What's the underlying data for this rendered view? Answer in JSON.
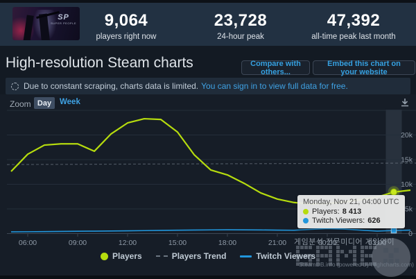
{
  "header": {
    "game_title": "SUPER PEOPLE",
    "game_logo_abbr": "SP",
    "stats": [
      {
        "value": "9,064",
        "label": "players right now"
      },
      {
        "value": "23,728",
        "label": "24-hour peak"
      },
      {
        "value": "47,392",
        "label": "all-time peak last month"
      }
    ]
  },
  "page": {
    "title": "High-resolution Steam charts",
    "compare_button": "Compare with others...",
    "embed_button": "Embed this chart on your website",
    "notice_text": "Due to constant scraping, charts data is limited.",
    "notice_link": "You can sign in to view full data for free."
  },
  "toolbar": {
    "zoom_label": "Zoom",
    "day": "Day",
    "week": "Week"
  },
  "tooltip": {
    "title": "Monday, Nov 21, 04:00 UTC",
    "players_label": "Players:",
    "players_value": "8 413",
    "twitch_label": "Twitch Viewers:",
    "twitch_value": "626"
  },
  "legend": [
    {
      "label": "Players"
    },
    {
      "label": "Players Trend"
    },
    {
      "label": "Twitch Viewers"
    }
  ],
  "watermark": {
    "korean": "게임분석 전문미디어 게임와이",
    "logo": "GAME",
    "credits": "SteamDB.info (powered by Highcharts.com)"
  },
  "colors": {
    "players": "#b6dc0e",
    "twitch": "#2196dc",
    "trend": "#707a86",
    "accent_blue": "#3fa2e4",
    "tooltip_bg": "#e9e9e9"
  },
  "chart_data": {
    "type": "line",
    "title": "High-resolution Steam charts",
    "x_start": "05:00",
    "hours_per_point": 1,
    "x_tick_labels": [
      "06:00",
      "09:00",
      "12:00",
      "15:00",
      "18:00",
      "21:00",
      "00:00",
      "03:00"
    ],
    "y_tick_labels": [
      "0",
      "5k",
      "10k",
      "15k",
      "20k"
    ],
    "y_tick_values": [
      0,
      5000,
      10000,
      15000,
      20000
    ],
    "ylim": [
      0,
      25000
    ],
    "grid": true,
    "legend_position": "bottom",
    "series": [
      {
        "name": "Players",
        "values": [
          12600,
          16100,
          17950,
          18200,
          18200,
          16700,
          20200,
          22450,
          23300,
          23150,
          20600,
          16000,
          12900,
          11900,
          10200,
          8250,
          7000,
          6300,
          6000,
          6100,
          6400,
          6850,
          7400,
          8413,
          8800
        ]
      },
      {
        "name": "Twitch Viewers",
        "values": [
          350,
          370,
          400,
          430,
          460,
          490,
          520,
          560,
          600,
          640,
          680,
          710,
          740,
          760,
          750,
          730,
          700,
          670,
          850,
          1000,
          900,
          700,
          500,
          626,
          700
        ]
      }
    ],
    "trend": {
      "name": "Players Trend",
      "start_value": 14000,
      "end_value": 14300
    },
    "highlight_index": 23,
    "highlight_players": 8413,
    "highlight_twitch": 626
  }
}
